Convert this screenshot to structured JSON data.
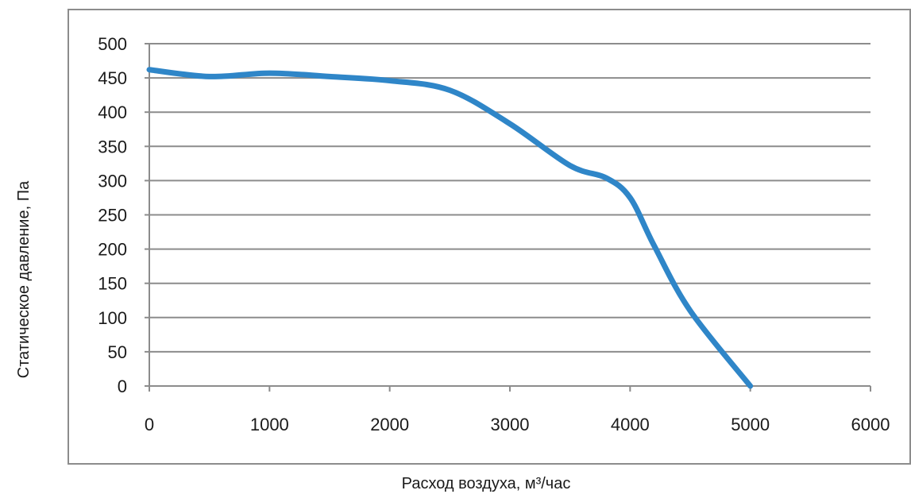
{
  "chart_data": {
    "type": "line",
    "xlabel": "Расход воздуха, м³/час",
    "ylabel": "Статическое давление, Па",
    "xlim": [
      0,
      6000
    ],
    "ylim": [
      0,
      500
    ],
    "x_ticks": [
      0,
      1000,
      2000,
      3000,
      4000,
      5000,
      6000
    ],
    "y_ticks": [
      0,
      50,
      100,
      150,
      200,
      250,
      300,
      350,
      400,
      450,
      500
    ],
    "grid": "horizontal",
    "series": [
      {
        "color": "#2f86c8",
        "x": [
          0,
          500,
          1000,
          1500,
          2000,
          2500,
          3000,
          3500,
          3800,
          4000,
          4200,
          4500,
          5000
        ],
        "y": [
          462,
          452,
          457,
          452,
          446,
          432,
          383,
          322,
          304,
          275,
          205,
          110,
          0
        ]
      }
    ]
  }
}
